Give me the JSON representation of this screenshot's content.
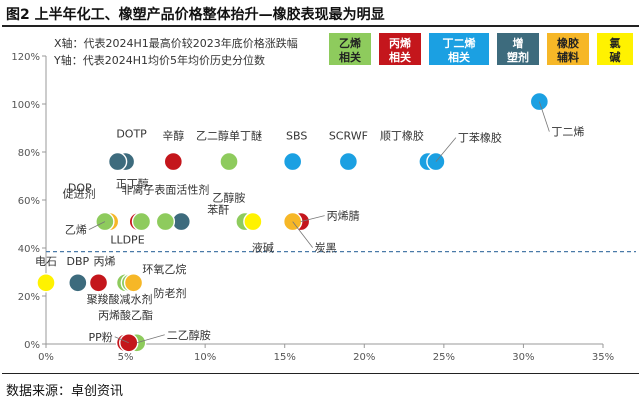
{
  "title": "图2 上半年化工、橡塑产品价格整体抬升—橡胶表现最为明显",
  "source": "数据来源：卓创资讯",
  "chart_data": {
    "type": "scatter",
    "notes": [
      "X轴：代表2024H1最高价较2023年底价格涨跌幅",
      "Y轴：代表2024H1均价5年均价历史分位数"
    ],
    "xlim": [
      0,
      0.35
    ],
    "ylim": [
      0,
      1.2
    ],
    "x_ticks": [
      "0%",
      "5%",
      "10%",
      "15%",
      "20%",
      "25%",
      "30%",
      "35%"
    ],
    "y_ticks": [
      "0%",
      "20%",
      "40%",
      "60%",
      "80%",
      "100%",
      "120%"
    ],
    "grid": false,
    "reference_line_y": 0.385,
    "legend_position": "top-right",
    "groups": [
      {
        "key": "ethylene",
        "name": "乙烯相关",
        "color": "#8ecb5d"
      },
      {
        "key": "propylene",
        "name": "丙烯相关",
        "color": "#c4161c"
      },
      {
        "key": "c4",
        "name": "丁二烯相关",
        "color": "#1ba0e2"
      },
      {
        "key": "plastic",
        "name": "增塑剂",
        "color": "#3d6b7d"
      },
      {
        "key": "rubber_aux",
        "name": "橡胶辅料",
        "color": "#f6b727"
      },
      {
        "key": "chlor_alkali",
        "name": "氯碱",
        "color": "#fff200"
      }
    ],
    "points": [
      {
        "label": "丁二烯",
        "x": 0.31,
        "y": 1.01,
        "group": "c4"
      },
      {
        "label": "顺丁橡胶",
        "x": 0.24,
        "y": 0.76,
        "group": "c4"
      },
      {
        "label": "丁苯橡胶",
        "x": 0.245,
        "y": 0.76,
        "group": "c4"
      },
      {
        "label": "SCRWF",
        "x": 0.19,
        "y": 0.76,
        "group": "c4"
      },
      {
        "label": "SBS",
        "x": 0.155,
        "y": 0.76,
        "group": "c4"
      },
      {
        "label": "乙二醇单丁醚",
        "x": 0.115,
        "y": 0.76,
        "group": "ethylene"
      },
      {
        "label": "辛醇",
        "x": 0.08,
        "y": 0.76,
        "group": "propylene"
      },
      {
        "label": "DOTP",
        "x": 0.05,
        "y": 0.76,
        "group": "plastic"
      },
      {
        "label": "DOP",
        "x": 0.045,
        "y": 0.76,
        "group": "plastic"
      },
      {
        "label": "丙烯腈",
        "x": 0.16,
        "y": 0.51,
        "group": "propylene"
      },
      {
        "label": "炭黑",
        "x": 0.155,
        "y": 0.51,
        "group": "rubber_aux"
      },
      {
        "label": "乙醇胺",
        "x": 0.125,
        "y": 0.51,
        "group": "ethylene"
      },
      {
        "label": "液碱",
        "x": 0.13,
        "y": 0.51,
        "group": "chlor_alkali"
      },
      {
        "label": "苯酐",
        "x": 0.085,
        "y": 0.51,
        "group": "plastic"
      },
      {
        "label": "非离子表面活性剂",
        "x": 0.075,
        "y": 0.51,
        "group": "ethylene"
      },
      {
        "label": "正丁醇",
        "x": 0.058,
        "y": 0.51,
        "group": "propylene"
      },
      {
        "label": "促进剂",
        "x": 0.04,
        "y": 0.51,
        "group": "rubber_aux"
      },
      {
        "label": "乙烯",
        "x": 0.037,
        "y": 0.51,
        "group": "ethylene"
      },
      {
        "label": "LLDPE",
        "x": 0.06,
        "y": 0.51,
        "group": "ethylene"
      },
      {
        "label": "电石",
        "x": 0.0,
        "y": 0.255,
        "group": "chlor_alkali"
      },
      {
        "label": "DBP",
        "x": 0.02,
        "y": 0.255,
        "group": "plastic"
      },
      {
        "label": "丙烯",
        "x": 0.033,
        "y": 0.255,
        "group": "propylene"
      },
      {
        "label": "聚羧酸减水剂",
        "x": 0.05,
        "y": 0.255,
        "group": "ethylene"
      },
      {
        "label": "环氧乙烷",
        "x": 0.053,
        "y": 0.255,
        "group": "ethylene"
      },
      {
        "label": "防老剂",
        "x": 0.055,
        "y": 0.255,
        "group": "rubber_aux"
      },
      {
        "label": "丙烯酸乙酯",
        "x": 0.05,
        "y": 0.005,
        "group": "propylene"
      },
      {
        "label": "二乙醇胺",
        "x": 0.057,
        "y": 0.005,
        "group": "ethylene"
      },
      {
        "label": "PP粉",
        "x": 0.052,
        "y": 0.005,
        "group": "propylene"
      }
    ]
  }
}
